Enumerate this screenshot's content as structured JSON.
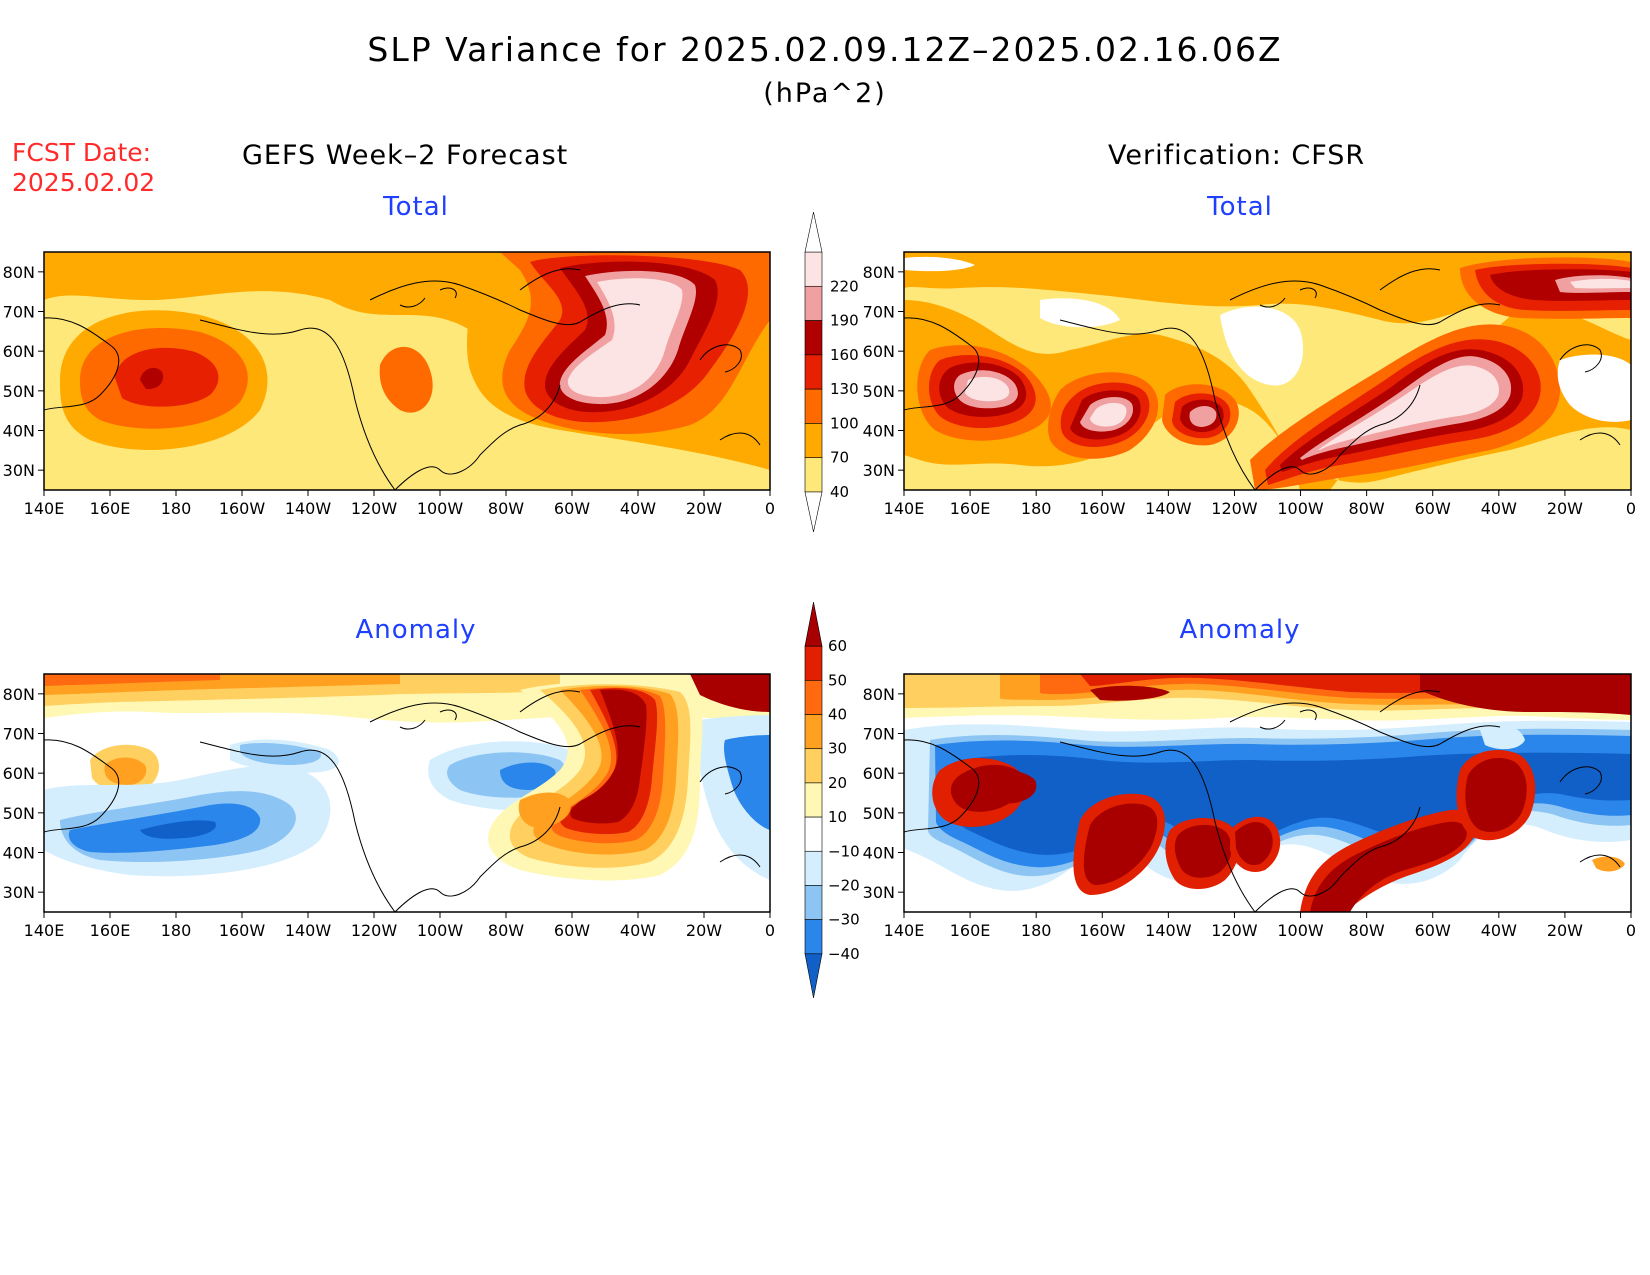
{
  "title": "SLP Variance for 2025.02.09.12Z–2025.02.16.06Z",
  "units": "(hPa^2)",
  "fcst_label": "FCST Date:",
  "fcst_date": "2025.02.02",
  "left_header": "GEFS Week–2 Forecast",
  "right_header": "Verification: CFSR",
  "panels": {
    "gefs_total": "Total",
    "cfsr_total": "Total",
    "gefs_anomaly": "Anomaly",
    "cfsr_anomaly": "Anomaly"
  },
  "lat_labels": [
    "80N",
    "70N",
    "60N",
    "50N",
    "40N",
    "30N"
  ],
  "lon_labels": [
    "140E",
    "160E",
    "180",
    "160W",
    "140W",
    "120W",
    "100W",
    "80W",
    "60W",
    "40W",
    "20W",
    "0"
  ],
  "total_colorbar": {
    "levels": [
      "40",
      "70",
      "100",
      "130",
      "160",
      "190",
      "220"
    ],
    "colors": [
      "#ffe87a",
      "#ffaa00",
      "#ff6a00",
      "#e62000",
      "#b00000",
      "#f0a0a0",
      "#fde4e4"
    ]
  },
  "anomaly_colorbar": {
    "levels": [
      "-40",
      "-30",
      "-20",
      "-10",
      "10",
      "20",
      "30",
      "40",
      "50",
      "60"
    ],
    "colors": [
      "#1060c8",
      "#2a86ea",
      "#8cc4f4",
      "#d4eefd",
      "#ffffff",
      "#fff8b4",
      "#ffd060",
      "#ffa020",
      "#ff6a10",
      "#e02000",
      "#a80000"
    ]
  }
}
